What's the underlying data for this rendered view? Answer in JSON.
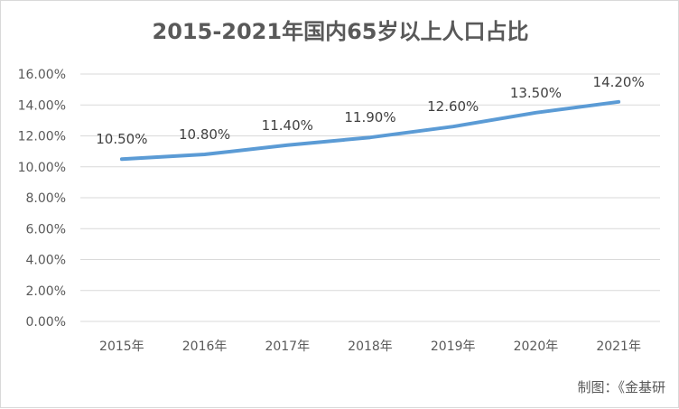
{
  "chart_data": {
    "type": "line",
    "title": "2015-2021年国内65岁以上人口占比",
    "categories": [
      "2015年",
      "2016年",
      "2017年",
      "2018年",
      "2019年",
      "2020年",
      "2021年"
    ],
    "series": [
      {
        "values": [
          10.5,
          10.8,
          11.4,
          11.9,
          12.6,
          13.5,
          14.2
        ]
      }
    ],
    "data_labels": [
      "10.50%",
      "10.80%",
      "11.40%",
      "11.90%",
      "12.60%",
      "13.50%",
      "14.20%"
    ],
    "yticks": [
      0,
      2,
      4,
      6,
      8,
      10,
      12,
      14,
      16
    ],
    "ytick_labels": [
      "0.00%",
      "2.00%",
      "4.00%",
      "6.00%",
      "8.00%",
      "10.00%",
      "12.00%",
      "14.00%",
      "16.00%"
    ],
    "ylim": [
      0,
      16
    ],
    "xlabel": "",
    "ylabel": "",
    "grid": true,
    "line_color": "#5b9bd5",
    "grid_color": "#d9d9d9"
  },
  "credit": "制图：《金基研"
}
